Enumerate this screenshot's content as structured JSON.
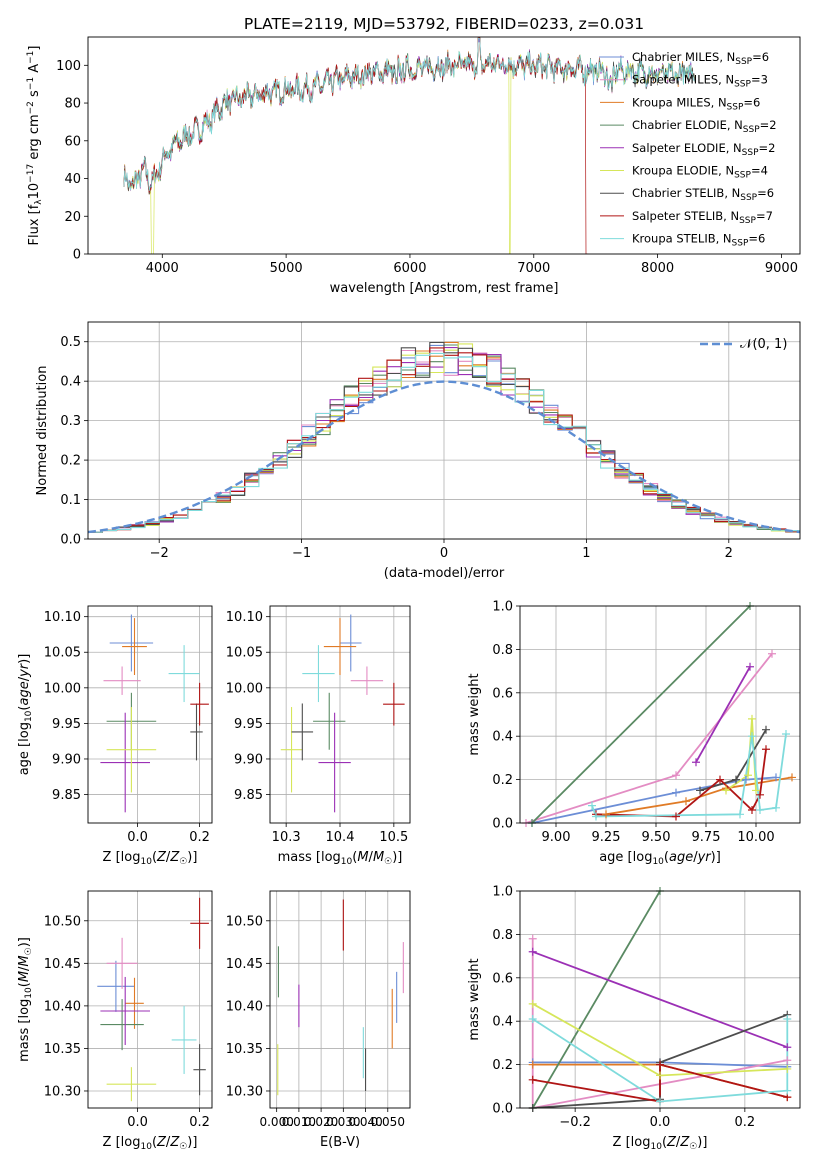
{
  "colors": {
    "Chabrier MILES": "#6c8ed6",
    "Salpeter MILES": "#e38cc3",
    "Kroupa MILES": "#e07b26",
    "Chabrier ELODIE": "#5a8a63",
    "Salpeter ELODIE": "#9b30b5",
    "Kroupa ELODIE": "#d6e65a",
    "Chabrier STELIB": "#4d4d4d",
    "Salpeter STELIB": "#b01515",
    "Kroupa STELIB": "#7fdbdc",
    "gaussian": "#5e8ed3",
    "grid": "#b0b0b0"
  },
  "chart_data": [
    {
      "type": "line",
      "title": "PLATE=2119, MJD=53792, FIBERID=0233, z=0.031",
      "xlabel": "wavelength [Angstrom, rest frame]",
      "ylabel": "Flux [fλ10⁻¹⁷ erg cm⁻² s⁻¹ A⁻¹]",
      "xlim": [
        3400,
        9150
      ],
      "ylim": [
        0,
        115
      ],
      "xticks": [
        4000,
        5000,
        6000,
        7000,
        8000,
        9000
      ],
      "yticks": [
        0,
        20,
        40,
        60,
        80,
        100
      ],
      "grid": false,
      "legend": "top-right",
      "legend_entries": [
        "Chabrier MILES, N_SSP=6",
        "Salpeter MILES, N_SSP=3",
        "Kroupa MILES, N_SSP=6",
        "Chabrier ELODIE, N_SSP=2",
        "Salpeter ELODIE, N_SSP=2",
        "Kroupa ELODIE, N_SSP=4",
        "Chabrier STELIB, N_SSP=6",
        "Salpeter STELIB, N_SSP=7",
        "Kroupa STELIB, N_SSP=6"
      ],
      "continuum": {
        "x": [
          3690,
          3760,
          3800,
          3850,
          3900,
          3960,
          4000,
          4100,
          4200,
          4300,
          4400,
          4500,
          4600,
          4800,
          5000,
          5200,
          5400,
          5600,
          5800,
          6000,
          6200,
          6400,
          6500,
          6700,
          6900,
          7100,
          7300,
          7500,
          7700,
          7900,
          8100,
          8300
        ],
        "y": [
          40,
          36,
          40,
          45,
          38,
          42,
          50,
          58,
          63,
          66,
          72,
          80,
          82,
          85,
          87,
          88,
          92,
          95,
          97,
          98,
          99,
          100,
          100,
          101,
          100,
          99,
          98,
          97,
          97,
          96,
          95,
          96
        ]
      },
      "dropouts": [
        {
          "series": "Kroupa ELODIE",
          "start": 3910,
          "end": 3930
        },
        {
          "series": "Kroupa ELODIE",
          "start": 6800,
          "end": 6810
        },
        {
          "series": "Salpeter STELIB",
          "start": 7420,
          "end": 7440
        }
      ]
    },
    {
      "type": "histogram",
      "xlabel": "(data-model)/error",
      "ylabel": "Normed distribution",
      "xlim": [
        -2.5,
        2.5
      ],
      "ylim": [
        0,
        0.55
      ],
      "xticks": [
        -2,
        -1,
        0,
        1,
        2
      ],
      "yticks": [
        0.0,
        0.1,
        0.2,
        0.3,
        0.4,
        0.5
      ],
      "bin_width": 0.1,
      "grid": true,
      "legend": "top-right",
      "gaussian_label": "𝒩(0, 1)",
      "envelope_peak": 0.45
    },
    {
      "type": "scatter",
      "xlabel": "Z [log10(Z/Z☉)]",
      "ylabel": "age  [log10(age/yr)]",
      "xlim": [
        -0.16,
        0.24
      ],
      "ylim": [
        9.81,
        10.115
      ],
      "xticks": [
        0.0,
        0.2
      ],
      "yticks": [
        9.85,
        9.9,
        9.95,
        10.0,
        10.05,
        10.1
      ],
      "grid": true,
      "points": [
        {
          "series": "Chabrier MILES",
          "x": -0.02,
          "y": 10.063,
          "xerr": 0.07,
          "yerr": 0.04
        },
        {
          "series": "Salpeter MILES",
          "x": -0.05,
          "y": 10.01,
          "xerr": 0.06,
          "yerr": 0.02
        },
        {
          "series": "Kroupa MILES",
          "x": -0.01,
          "y": 10.058,
          "xerr": 0.04,
          "yerr": 0.04
        },
        {
          "series": "Chabrier ELODIE",
          "x": -0.02,
          "y": 9.953,
          "xerr": 0.08,
          "yerr": 0.04
        },
        {
          "series": "Salpeter ELODIE",
          "x": -0.04,
          "y": 9.895,
          "xerr": 0.08,
          "yerr": 0.07
        },
        {
          "series": "Kroupa ELODIE",
          "x": -0.02,
          "y": 9.913,
          "xerr": 0.08,
          "yerr": 0.06
        },
        {
          "series": "Chabrier STELIB",
          "x": 0.19,
          "y": 9.938,
          "xerr": 0.02,
          "yerr": 0.04
        },
        {
          "series": "Salpeter STELIB",
          "x": 0.2,
          "y": 9.977,
          "xerr": 0.03,
          "yerr": 0.03
        },
        {
          "series": "Kroupa STELIB",
          "x": 0.15,
          "y": 10.02,
          "xerr": 0.05,
          "yerr": 0.04
        }
      ]
    },
    {
      "type": "scatter",
      "xlabel": "mass [log10(M/M☉)]",
      "ylabel": "",
      "xlim": [
        10.27,
        10.53
      ],
      "ylim": [
        9.81,
        10.115
      ],
      "xticks": [
        10.3,
        10.4,
        10.5
      ],
      "yticks": [
        9.85,
        9.9,
        9.95,
        10.0,
        10.05,
        10.1
      ],
      "grid": true,
      "points": [
        {
          "series": "Chabrier MILES",
          "x": 10.42,
          "y": 10.063,
          "xerr": 0.02,
          "yerr": 0.04
        },
        {
          "series": "Salpeter MILES",
          "x": 10.45,
          "y": 10.01,
          "xerr": 0.03,
          "yerr": 0.02
        },
        {
          "series": "Kroupa MILES",
          "x": 10.4,
          "y": 10.058,
          "xerr": 0.03,
          "yerr": 0.04
        },
        {
          "series": "Chabrier ELODIE",
          "x": 10.38,
          "y": 9.953,
          "xerr": 0.03,
          "yerr": 0.04
        },
        {
          "series": "Salpeter ELODIE",
          "x": 10.39,
          "y": 9.895,
          "xerr": 0.03,
          "yerr": 0.07
        },
        {
          "series": "Kroupa ELODIE",
          "x": 10.31,
          "y": 9.913,
          "xerr": 0.02,
          "yerr": 0.06
        },
        {
          "series": "Chabrier STELIB",
          "x": 10.33,
          "y": 9.938,
          "xerr": 0.02,
          "yerr": 0.04
        },
        {
          "series": "Salpeter STELIB",
          "x": 10.5,
          "y": 9.977,
          "xerr": 0.02,
          "yerr": 0.03
        },
        {
          "series": "Kroupa STELIB",
          "x": 10.36,
          "y": 10.02,
          "xerr": 0.03,
          "yerr": 0.04
        }
      ]
    },
    {
      "type": "line",
      "xlabel": "age  [log10(age/yr)]",
      "ylabel": "mass weight",
      "xlim": [
        8.82,
        10.22
      ],
      "ylim": [
        0,
        1
      ],
      "xticks": [
        9.0,
        9.25,
        9.5,
        9.75,
        10.0
      ],
      "yticks": [
        0.0,
        0.2,
        0.4,
        0.6,
        0.8,
        1.0
      ],
      "grid": true,
      "series": [
        {
          "name": "Chabrier MILES",
          "x": [
            8.88,
            9.6,
            9.95,
            10.1
          ],
          "y": [
            0.0,
            0.14,
            0.2,
            0.21
          ]
        },
        {
          "name": "Salpeter MILES",
          "x": [
            8.85,
            9.6,
            10.08
          ],
          "y": [
            0.0,
            0.22,
            0.78
          ]
        },
        {
          "name": "Kroupa MILES",
          "x": [
            9.25,
            9.65,
            9.85,
            10.18
          ],
          "y": [
            0.04,
            0.1,
            0.16,
            0.21
          ]
        },
        {
          "name": "Chabrier ELODIE",
          "x": [
            8.88,
            9.97
          ],
          "y": [
            0.0,
            1.0
          ]
        },
        {
          "name": "Salpeter ELODIE",
          "x": [
            9.7,
            9.97
          ],
          "y": [
            0.28,
            0.72
          ]
        },
        {
          "name": "Kroupa ELODIE",
          "x": [
            9.85,
            9.96,
            9.98,
            10.0
          ],
          "y": [
            0.15,
            0.22,
            0.48,
            0.15
          ]
        },
        {
          "name": "Chabrier STELIB",
          "x": [
            9.72,
            9.9,
            10.05
          ],
          "y": [
            0.15,
            0.2,
            0.43
          ]
        },
        {
          "name": "Salpeter STELIB",
          "x": [
            9.2,
            9.6,
            9.82,
            9.98,
            10.02,
            10.05
          ],
          "y": [
            0.04,
            0.03,
            0.2,
            0.06,
            0.13,
            0.34
          ]
        },
        {
          "name": "Kroupa STELIB",
          "x": [
            9.18,
            9.2,
            9.92,
            9.98,
            10.02,
            10.1,
            10.15
          ],
          "y": [
            0.08,
            0.03,
            0.04,
            0.4,
            0.06,
            0.07,
            0.41
          ]
        }
      ]
    },
    {
      "type": "scatter",
      "xlabel": "Z [log10(Z/Z☉)]",
      "ylabel": "mass [log10(M/M☉)]",
      "xlim": [
        -0.16,
        0.24
      ],
      "ylim": [
        10.28,
        10.535
      ],
      "xticks": [
        0.0,
        0.2
      ],
      "yticks": [
        10.3,
        10.35,
        10.4,
        10.45,
        10.5
      ],
      "grid": true,
      "points": [
        {
          "series": "Chabrier MILES",
          "x": -0.07,
          "y": 10.423,
          "xerr": 0.06,
          "yerr": 0.03
        },
        {
          "series": "Salpeter MILES",
          "x": -0.05,
          "y": 10.45,
          "xerr": 0.05,
          "yerr": 0.03
        },
        {
          "series": "Kroupa MILES",
          "x": -0.01,
          "y": 10.403,
          "xerr": 0.03,
          "yerr": 0.03
        },
        {
          "series": "Chabrier ELODIE",
          "x": -0.05,
          "y": 10.378,
          "xerr": 0.07,
          "yerr": 0.03
        },
        {
          "series": "Salpeter ELODIE",
          "x": -0.04,
          "y": 10.394,
          "xerr": 0.08,
          "yerr": 0.04
        },
        {
          "series": "Kroupa ELODIE",
          "x": -0.02,
          "y": 10.308,
          "xerr": 0.08,
          "yerr": 0.02
        },
        {
          "series": "Chabrier STELIB",
          "x": 0.2,
          "y": 10.325,
          "xerr": 0.02,
          "yerr": 0.03
        },
        {
          "series": "Salpeter STELIB",
          "x": 0.2,
          "y": 10.497,
          "xerr": 0.03,
          "yerr": 0.03
        },
        {
          "series": "Kroupa STELIB",
          "x": 0.15,
          "y": 10.36,
          "xerr": 0.04,
          "yerr": 0.04
        }
      ]
    },
    {
      "type": "scatter",
      "xlabel": "E(B-V)",
      "ylabel": "",
      "xlim": [
        -0.003,
        0.06
      ],
      "ylim": [
        10.28,
        10.535
      ],
      "xticks": [
        0.0,
        0.01,
        0.02,
        0.03,
        0.04,
        0.05
      ],
      "xticklabels": [
        "0.000",
        "0.010",
        "0.020",
        "0.030",
        "0.040",
        "0.050"
      ],
      "yticks": [
        10.3,
        10.35,
        10.4,
        10.45,
        10.5
      ],
      "grid": true,
      "points": [
        {
          "series": "Chabrier MILES",
          "x": 0.054,
          "y": 10.41,
          "yerr": 0.03
        },
        {
          "series": "Salpeter MILES",
          "x": 0.057,
          "y": 10.445,
          "yerr": 0.03
        },
        {
          "series": "Kroupa MILES",
          "x": 0.052,
          "y": 10.385,
          "yerr": 0.035
        },
        {
          "series": "Chabrier ELODIE",
          "x": 0.0008,
          "y": 10.44,
          "yerr": 0.03
        },
        {
          "series": "Salpeter ELODIE",
          "x": 0.01,
          "y": 10.4,
          "yerr": 0.025
        },
        {
          "series": "Kroupa ELODIE",
          "x": 0.0005,
          "y": 10.325,
          "yerr": 0.03
        },
        {
          "series": "Chabrier STELIB",
          "x": 0.04,
          "y": 10.325,
          "yerr": 0.025
        },
        {
          "series": "Salpeter STELIB",
          "x": 0.03,
          "y": 10.495,
          "yerr": 0.03
        },
        {
          "series": "Kroupa STELIB",
          "x": 0.039,
          "y": 10.345,
          "yerr": 0.03
        }
      ]
    },
    {
      "type": "line",
      "xlabel": "Z [log10(Z/Z☉)]",
      "ylabel": "mass weight",
      "xlim": [
        -0.33,
        0.33
      ],
      "ylim": [
        0,
        1
      ],
      "xticks": [
        -0.2,
        0.0,
        0.2
      ],
      "yticks": [
        0.0,
        0.2,
        0.4,
        0.6,
        0.8,
        1.0
      ],
      "grid": true,
      "series": [
        {
          "name": "Chabrier MILES",
          "x": [
            -0.3,
            0.0,
            0.3
          ],
          "y": [
            0.21,
            0.21,
            0.19
          ]
        },
        {
          "name": "Salpeter MILES",
          "x": [
            -0.3,
            -0.3,
            0.3
          ],
          "y": [
            0.78,
            0.0,
            0.22
          ]
        },
        {
          "name": "Kroupa MILES",
          "x": [
            -0.3,
            0.0,
            0.3
          ],
          "y": [
            0.2,
            0.2,
            0.05
          ]
        },
        {
          "name": "Chabrier ELODIE",
          "x": [
            -0.3,
            0.0
          ],
          "y": [
            0.0,
            1.0
          ]
        },
        {
          "name": "Salpeter ELODIE",
          "x": [
            -0.3,
            0.3
          ],
          "y": [
            0.72,
            0.28
          ]
        },
        {
          "name": "Kroupa ELODIE",
          "x": [
            -0.3,
            0.0,
            0.3
          ],
          "y": [
            0.48,
            0.15,
            0.18
          ]
        },
        {
          "name": "Chabrier STELIB",
          "x": [
            -0.3,
            0.0,
            0.0,
            0.3
          ],
          "y": [
            0.0,
            0.04,
            0.21,
            0.43
          ]
        },
        {
          "name": "Salpeter STELIB",
          "x": [
            -0.3,
            0.0,
            0.0,
            0.3
          ],
          "y": [
            0.13,
            0.03,
            0.2,
            0.05
          ]
        },
        {
          "name": "Kroupa STELIB",
          "x": [
            -0.3,
            0.0,
            0.3,
            0.3
          ],
          "y": [
            0.41,
            0.03,
            0.08,
            0.41
          ]
        }
      ]
    }
  ]
}
